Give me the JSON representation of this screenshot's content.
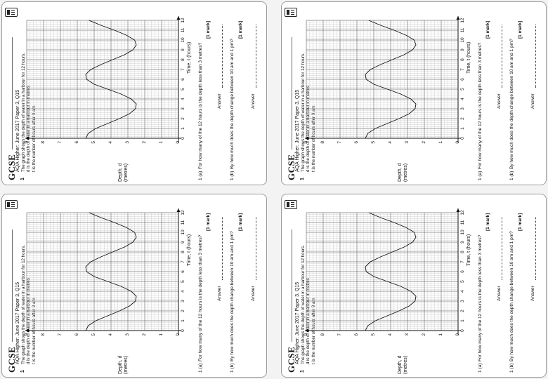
{
  "question": {
    "logo": "GCSE",
    "number": "1",
    "source": "AQA Higher: June 2017 Paper 3, Q15",
    "intro": [
      "The graph shows the depth of water in a harbour for 12 hours.",
      "d is the depth of water in a harbour in metres",
      "t is the number of hours after 9 am"
    ],
    "y_label_line1": "Depth, d",
    "y_label_line2": "(metres)",
    "x_label": "Time, t (hours)",
    "y_ticks": [
      "0",
      "1",
      "2",
      "3",
      "4",
      "5",
      "6",
      "7",
      "8",
      "9"
    ],
    "x_ticks": [
      "0",
      "1",
      "2",
      "3",
      "4",
      "5",
      "6",
      "7",
      "8",
      "9",
      "10",
      "11",
      "12"
    ],
    "part_a_label": "1 (a)",
    "part_a_text": "For how many of the 12 hours is the depth less than 3 metres?",
    "part_a_mark": "[1 mark]",
    "part_b_label": "1 (b)",
    "part_b_text": "By how much does the depth change between 10 am and 1 pm?",
    "part_b_mark": "[1 mark]",
    "answer_label": "Answer"
  },
  "chart_data": {
    "type": "line",
    "x_range": [
      0,
      12
    ],
    "y_range": [
      0,
      9
    ],
    "grid": true,
    "points": [
      [
        0,
        5.5
      ],
      [
        0.5,
        5.35
      ],
      [
        1,
        4.9
      ],
      [
        1.5,
        4.2
      ],
      [
        2,
        3.5
      ],
      [
        2.5,
        2.9
      ],
      [
        3,
        2.55
      ],
      [
        3.5,
        2.5
      ],
      [
        4,
        2.8
      ],
      [
        4.5,
        3.4
      ],
      [
        5,
        4.2
      ],
      [
        5.5,
        5.0
      ],
      [
        6,
        5.45
      ],
      [
        6.5,
        5.5
      ],
      [
        7,
        5.2
      ],
      [
        7.5,
        4.6
      ],
      [
        8,
        3.9
      ],
      [
        8.5,
        3.2
      ],
      [
        9,
        2.7
      ],
      [
        9.5,
        2.5
      ],
      [
        10,
        2.6
      ],
      [
        10.5,
        3.1
      ],
      [
        11,
        3.8
      ],
      [
        11.5,
        4.6
      ],
      [
        12,
        5.3
      ]
    ]
  }
}
